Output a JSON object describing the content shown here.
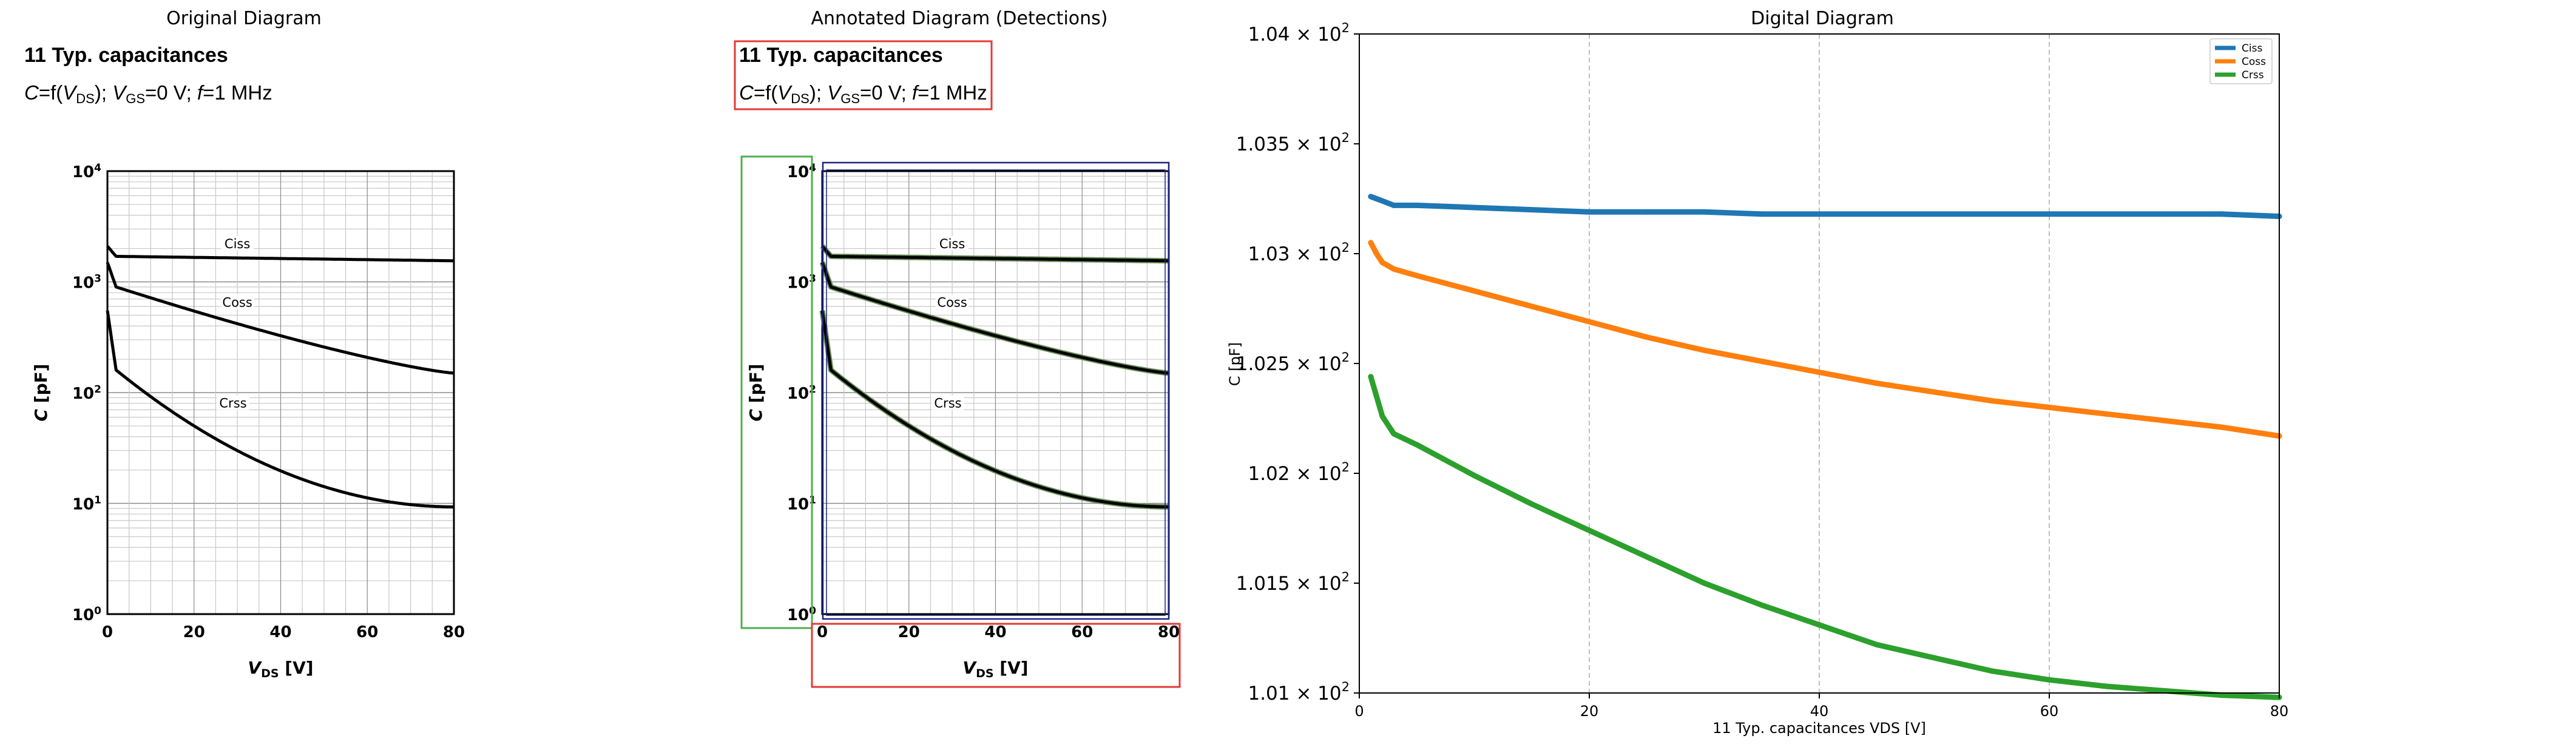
{
  "figure": {
    "panel_titles": [
      "Original Diagram",
      "Annotated Diagram (Detections)",
      "Digital Diagram"
    ]
  },
  "original": {
    "heading": "11 Typ. capacitances",
    "subtitle_parts": {
      "c": "C",
      "eq": "=f(",
      "v": "V",
      "ds": "DS",
      "mid": "); ",
      "v2": "V",
      "gs": "GS",
      "tail": "=0 V; ",
      "f": "f",
      "end": "=1 MHz"
    },
    "ylabel_main": "C",
    "ylabel_unit": " [pF]",
    "xlabel_main": "V",
    "xlabel_sub": "DS",
    "xlabel_unit": " [V]",
    "ytick_labels": [
      {
        "base": "10",
        "exp": "4"
      },
      {
        "base": "10",
        "exp": "3"
      },
      {
        "base": "10",
        "exp": "2"
      },
      {
        "base": "10",
        "exp": "1"
      },
      {
        "base": "10",
        "exp": "0"
      }
    ],
    "xtick_labels": [
      "0",
      "20",
      "40",
      "60",
      "80"
    ],
    "curve_labels": [
      "Ciss",
      "Coss",
      "Crss"
    ],
    "colors": {
      "curve": "#000000",
      "grid": "#b0b0b0",
      "detect_red": "#e53935",
      "detect_green": "#4caf50",
      "detect_blue": "#1a237e"
    }
  },
  "chart_data": {
    "type": "line",
    "title": "Digital Diagram",
    "xlabel": "11 Typ. capacitances VDS [V]",
    "ylabel": "C [pF]",
    "xlim": [
      0,
      80
    ],
    "ylim": [
      101.0,
      104.0
    ],
    "xticks": [
      "0",
      "20",
      "40",
      "60",
      "80"
    ],
    "yticks": [
      {
        "base": "1.01",
        "mult": "10",
        "exp": "2"
      },
      {
        "base": "1.015",
        "mult": "10",
        "exp": "2"
      },
      {
        "base": "1.02",
        "mult": "10",
        "exp": "2"
      },
      {
        "base": "1.025",
        "mult": "10",
        "exp": "2"
      },
      {
        "base": "1.03",
        "mult": "10",
        "exp": "2"
      },
      {
        "base": "1.035",
        "mult": "10",
        "exp": "2"
      },
      {
        "base": "1.04",
        "mult": "10",
        "exp": "2"
      }
    ],
    "ytick_values": [
      101.0,
      101.5,
      102.0,
      102.5,
      103.0,
      103.5,
      104.0
    ],
    "grid": "vertical dashed",
    "legend": "top-right",
    "x": [
      1,
      1.5,
      2,
      3,
      5,
      10,
      15,
      20,
      25,
      30,
      35,
      40,
      45,
      50,
      55,
      60,
      65,
      70,
      75,
      80
    ],
    "series": [
      {
        "name": "Ciss",
        "color": "#1f77b4",
        "values": [
          103.26,
          103.25,
          103.24,
          103.22,
          103.22,
          103.21,
          103.2,
          103.19,
          103.19,
          103.19,
          103.18,
          103.18,
          103.18,
          103.18,
          103.18,
          103.18,
          103.18,
          103.18,
          103.18,
          103.17
        ]
      },
      {
        "name": "Coss",
        "color": "#ff7f0e",
        "values": [
          103.05,
          103.0,
          102.96,
          102.93,
          102.9,
          102.83,
          102.76,
          102.69,
          102.62,
          102.56,
          102.51,
          102.46,
          102.41,
          102.37,
          102.33,
          102.3,
          102.27,
          102.24,
          102.21,
          102.17
        ]
      },
      {
        "name": "Crss",
        "color": "#2ca02c",
        "values": [
          102.44,
          102.35,
          102.26,
          102.18,
          102.13,
          101.99,
          101.86,
          101.74,
          101.62,
          101.5,
          101.4,
          101.31,
          101.22,
          101.16,
          101.1,
          101.06,
          101.03,
          101.01,
          100.99,
          100.98
        ]
      }
    ]
  }
}
